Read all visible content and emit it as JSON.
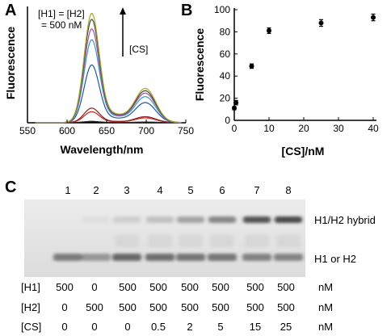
{
  "panels": {
    "a": {
      "letter": "A"
    },
    "b": {
      "letter": "B"
    },
    "c": {
      "letter": "C"
    }
  },
  "chart_data": [
    {
      "type": "line",
      "panel": "A",
      "xlabel": "Wavelength/nm",
      "ylabel": "Fluorescence",
      "xlim": [
        550,
        750
      ],
      "xticks": [
        550,
        600,
        650,
        700,
        750
      ],
      "annotation_lines": [
        "[H1] = [H2]",
        "= 500 nM"
      ],
      "arrow_label": "[CS]",
      "series": [
        {
          "color": "#000000",
          "peak630": 0.5,
          "peak700": 0.2
        },
        {
          "color": "#222222",
          "peak630": 1.0,
          "peak700": 0.4
        },
        {
          "color": "#cc2222",
          "peak630": 9,
          "peak700": 4
        },
        {
          "color": "#882222",
          "peak630": 12,
          "peak700": 5
        },
        {
          "color": "#2255aa",
          "peak630": 48,
          "peak700": 17
        },
        {
          "color": "#2a9fc8",
          "peak630": 69,
          "peak700": 22
        },
        {
          "color": "#a84ab0",
          "peak630": 78,
          "peak700": 25
        },
        {
          "color": "#444444",
          "peak630": 86,
          "peak700": 27
        },
        {
          "color": "#a8a81e",
          "peak630": 91,
          "peak700": 29
        }
      ]
    },
    {
      "type": "scatter",
      "panel": "B",
      "xlabel": "[CS]/nM",
      "ylabel": "Fluorescence",
      "xlim": [
        0,
        40
      ],
      "ylim": [
        0,
        100
      ],
      "xticks": [
        0,
        10,
        20,
        30,
        40
      ],
      "yticks": [
        0,
        20,
        40,
        60,
        80,
        100
      ],
      "points": [
        {
          "x": 0,
          "y": 11,
          "err": 1.5
        },
        {
          "x": 0.5,
          "y": 16,
          "err": 2
        },
        {
          "x": 5,
          "y": 49,
          "err": 2
        },
        {
          "x": 10,
          "y": 81,
          "err": 2.5
        },
        {
          "x": 25,
          "y": 88,
          "err": 3
        },
        {
          "x": 40,
          "y": 93,
          "err": 3
        }
      ]
    }
  ],
  "gel": {
    "lane_numbers": [
      "1",
      "2",
      "3",
      "4",
      "5",
      "6",
      "7",
      "8"
    ],
    "band_labels": {
      "hybrid": "H1/H2 hybrid",
      "monomer": "H1 or H2"
    },
    "hybrid_intensity": [
      0.0,
      0.05,
      0.15,
      0.22,
      0.38,
      0.55,
      0.85,
      0.9
    ],
    "monomer_intensity": [
      0.75,
      0.55,
      0.9,
      0.85,
      0.8,
      0.78,
      0.7,
      0.68
    ],
    "rows": [
      {
        "label": "[H1]",
        "values": [
          "500",
          "0",
          "500",
          "500",
          "500",
          "500",
          "500",
          "500"
        ],
        "unit": "nM"
      },
      {
        "label": "[H2]",
        "values": [
          "0",
          "500",
          "500",
          "500",
          "500",
          "500",
          "500",
          "500"
        ],
        "unit": "nM"
      },
      {
        "label": "[CS]",
        "values": [
          "0",
          "0",
          "0",
          "0.5",
          "2",
          "5",
          "15",
          "25"
        ],
        "unit": "nM"
      }
    ]
  }
}
